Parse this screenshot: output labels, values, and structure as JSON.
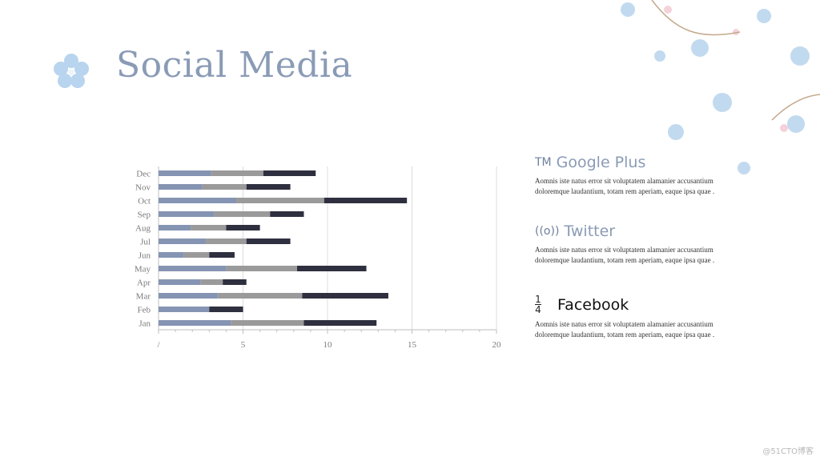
{
  "slide": {
    "title": "Social Media",
    "watermark": "@51CTO博客"
  },
  "colors": {
    "series1": "#8594b3",
    "series2": "#9a9a9a",
    "series3": "#2e2f3f",
    "accent": "#8a9bb6"
  },
  "chart_data": {
    "type": "bar",
    "orientation": "horizontal",
    "stacked": true,
    "categories": [
      "Jan",
      "Feb",
      "Mar",
      "Apr",
      "May",
      "Jun",
      "Jul",
      "Aug",
      "Sep",
      "Oct",
      "Nov",
      "Dec"
    ],
    "series": [
      {
        "values": [
          4.3,
          3.0,
          3.5,
          2.5,
          4.0,
          1.5,
          2.8,
          1.9,
          3.3,
          4.6,
          2.6,
          3.1
        ]
      },
      {
        "values": [
          4.3,
          0.0,
          5.0,
          1.3,
          4.2,
          1.5,
          2.4,
          2.1,
          3.3,
          5.2,
          2.6,
          3.1
        ]
      },
      {
        "values": [
          4.3,
          2.0,
          5.1,
          1.4,
          4.1,
          1.5,
          2.6,
          2.0,
          2.0,
          4.9,
          2.6,
          3.1
        ]
      }
    ],
    "xlim": [
      0,
      20
    ],
    "xticks": [
      "/",
      "5",
      "10",
      "15",
      "20"
    ],
    "grid": true
  },
  "items": [
    {
      "icon": "TM",
      "name": "Google Plus",
      "body": "Aomnis iste natus error sit voluptatem alamanier accusantium doloremque laudantium, totam rem aperiam, eaque ipsa quae ."
    },
    {
      "icon": "((o))",
      "name": "Twitter",
      "body": "Aomnis iste natus error sit voluptatem alamanier accusantium doloremque laudantium, totam rem aperiam, eaque ipsa quae ."
    },
    {
      "icon_num": "1",
      "icon_den": "4",
      "name": "Facebook",
      "body": "Aomnis iste natus error sit voluptatem alamanier accusantium doloremque laudantium, totam rem aperiam, eaque ipsa quae ."
    }
  ]
}
